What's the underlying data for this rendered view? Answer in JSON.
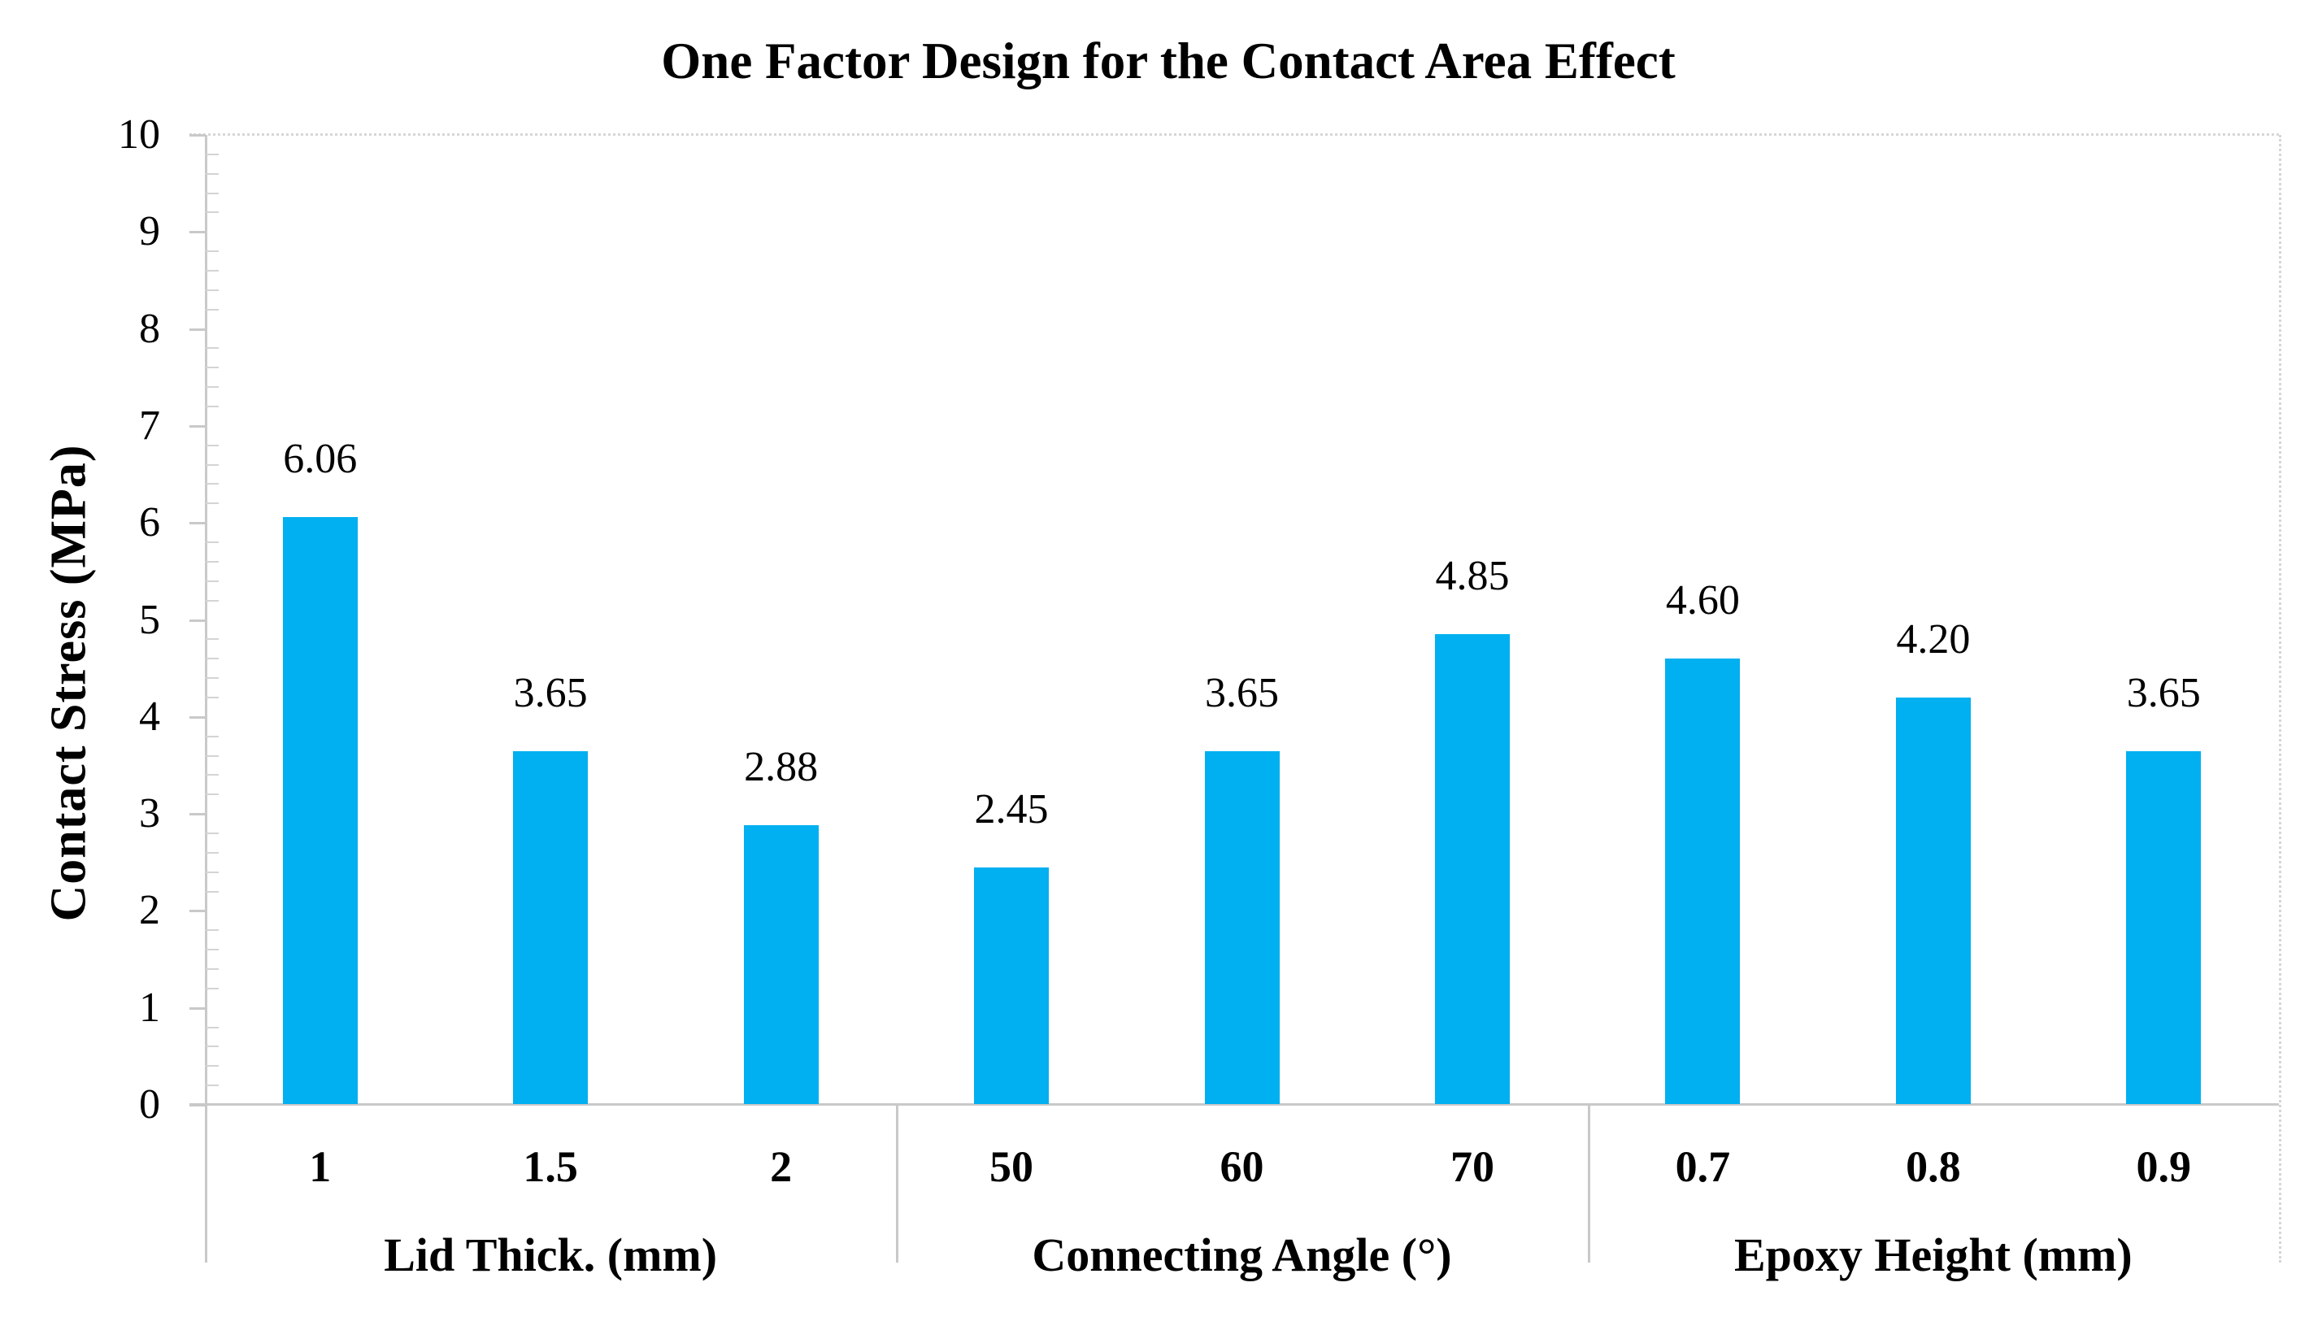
{
  "chart_data": {
    "type": "bar",
    "title": "One Factor Design for the Contact Area Effect",
    "ylabel": "Contact Stress (MPa)",
    "xlabel": "",
    "ylim": [
      0,
      10
    ],
    "y_major_step": 1,
    "y_minor_step": 0.2,
    "y_tick_labels": [
      "0",
      "1",
      "2",
      "3",
      "4",
      "5",
      "6",
      "7",
      "8",
      "9",
      "10"
    ],
    "grid": false,
    "legend_position": "none",
    "bar_color": "#00B0F0",
    "axis_color": "#C9C9C9",
    "minor_tick_color": "#D4D4D4",
    "border_color": "#D6D6D6",
    "text_color": "#000000",
    "groups": [
      {
        "label": "Lid Thick. (mm)",
        "categories": [
          "1",
          "1.5",
          "2"
        ],
        "values": [
          6.06,
          3.65,
          2.88
        ]
      },
      {
        "label": "Connecting Angle (°)",
        "categories": [
          "50",
          "60",
          "70"
        ],
        "values": [
          2.45,
          3.65,
          4.85
        ]
      },
      {
        "label": "Epoxy Height (mm)",
        "categories": [
          "0.7",
          "0.8",
          "0.9"
        ],
        "values": [
          4.6,
          4.2,
          3.65
        ]
      }
    ],
    "categories": [
      "1",
      "1.5",
      "2",
      "50",
      "60",
      "70",
      "0.7",
      "0.8",
      "0.9"
    ],
    "values": [
      6.06,
      3.65,
      2.88,
      2.45,
      3.65,
      4.85,
      4.6,
      4.2,
      3.65
    ],
    "data_labels": [
      "6.06",
      "3.65",
      "2.88",
      "2.45",
      "3.65",
      "4.85",
      "4.60",
      "4.20",
      "3.65"
    ],
    "group_labels": [
      "Lid Thick. (mm)",
      "Connecting Angle (°)",
      "Epoxy Height (mm)"
    ]
  }
}
